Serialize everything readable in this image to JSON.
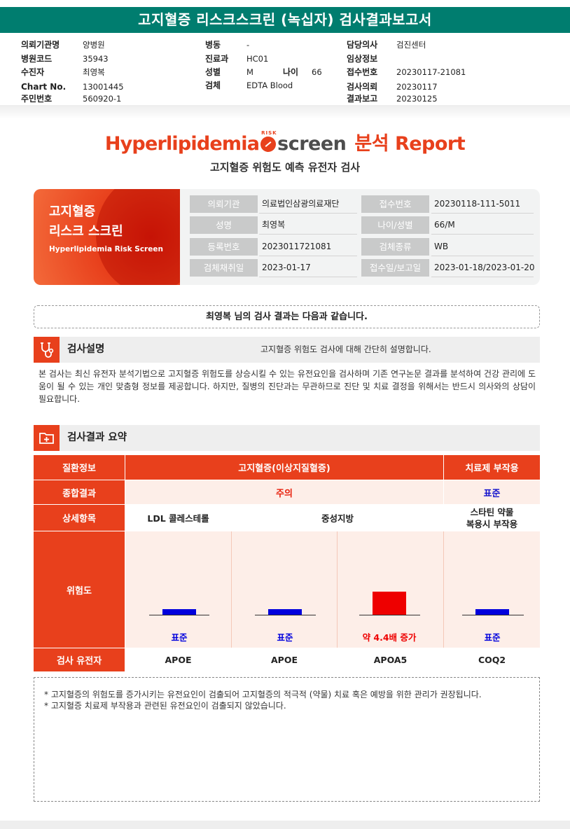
{
  "doc_title": "고지혈증 리스크스크린 (녹십자) 검사결과보고서",
  "header": {
    "col1": [
      {
        "label": "의뢰기관명",
        "value": "양병원"
      },
      {
        "label": "병원코드",
        "value": "35943"
      },
      {
        "label": "수진자",
        "value": "최영복"
      },
      {
        "label": "Chart No.",
        "value": "13001445"
      },
      {
        "label": "주민번호",
        "value": "560920-1"
      }
    ],
    "col2": [
      {
        "label": "병동",
        "value": "-"
      },
      {
        "label": "진료과",
        "value": "HC01"
      },
      {
        "label": "성별",
        "value": "M"
      },
      {
        "label": "검체",
        "value": "EDTA Blood"
      }
    ],
    "age_label": "나이",
    "age_value": "66",
    "col3": [
      {
        "label": "담당의사",
        "value": "검진센터"
      },
      {
        "label": "임상정보",
        "value": ""
      },
      {
        "label": "접수번호",
        "value": "20230117-21081"
      },
      {
        "label": "검사의뢰",
        "value": "20230117"
      },
      {
        "label": "결과보고",
        "value": "20230125"
      }
    ]
  },
  "logo": {
    "word1": "Hyperlipidemia",
    "risk_tag": "RISK",
    "word2": "screen",
    "word3": "분석 Report"
  },
  "subtitle": "고지혈증 위험도 예측 유전자 검사",
  "banner": {
    "line1": "고지혈증",
    "line2": "리스크 스크린",
    "line3": "Hyperlipidemia Risk Screen"
  },
  "info": [
    {
      "label": "의뢰기관",
      "value": "의료법인삼광의료재단",
      "label2": "접수번호",
      "value2": "20230118-111-5011"
    },
    {
      "label": "성명",
      "value": "최영복",
      "label2": "나이/성별",
      "value2": "66/M"
    },
    {
      "label": "등록번호",
      "value": "2023011721081",
      "label2": "검체종류",
      "value2": "WB"
    },
    {
      "label": "검체채취일",
      "value": "2023-01-17",
      "label2": "접수일/보고일",
      "value2": "2023-01-18/2023-01-20"
    }
  ],
  "greeting": "최영복 님의 검사 결과는 다음과 같습니다.",
  "section1": {
    "title": "검사설명",
    "note": "고지혈증 위험도 검사에 대해 간단히 설명합니다.",
    "body": "본 검사는 최신 유전자 분석기법으로 고지혈증 위험도를 상승시킬 수 있는 유전요인을 검사하며 기존 연구논문 결과를 분석하여 건강 관리에 도움이 될 수 있는 개인 맞춤형 정보를 제공합니다. 하지만, 질병의 진단과는 무관하므로 진단 및 치료 결정을 위해서는 반드시 의사와의 상담이 필요합니다."
  },
  "section2": {
    "title": "검사결과 요약"
  },
  "summary": {
    "row_labels": [
      "질환정보",
      "종합결과",
      "상세항목",
      "위험도",
      "검사 유전자"
    ],
    "disease_main": "고지혈증(이상지질혈증)",
    "disease_side": "치료제 부작용",
    "overall_main": "주의",
    "overall_side": "표준",
    "detail_ldl": "LDL 콜레스테롤",
    "detail_tg": "중성지방",
    "detail_statin_1": "스타틴 약물",
    "detail_statin_2": "복용시 부작용",
    "risk_items": [
      {
        "label": "표준",
        "level": 1.0,
        "color": "#0000dd"
      },
      {
        "label": "표준",
        "level": 1.0,
        "color": "#0000dd"
      },
      {
        "label": "약 4.4배 증가",
        "level": 4.4,
        "color": "#ee0000"
      },
      {
        "label": "표준",
        "level": 1.0,
        "color": "#0000dd"
      }
    ],
    "genes": [
      "APOE",
      "APOE",
      "APOA5",
      "COQ2"
    ]
  },
  "notes": [
    "* 고지혈증의 위험도를 증가시키는 유전요인이 검출되어 고지혈증의 적극적 (약물) 치료 혹은 예방을 위한 관리가 권장됩니다.",
    "* 고지혈증 치료제 부작용과 관련된 유전요인이 검출되지 않았습니다."
  ]
}
